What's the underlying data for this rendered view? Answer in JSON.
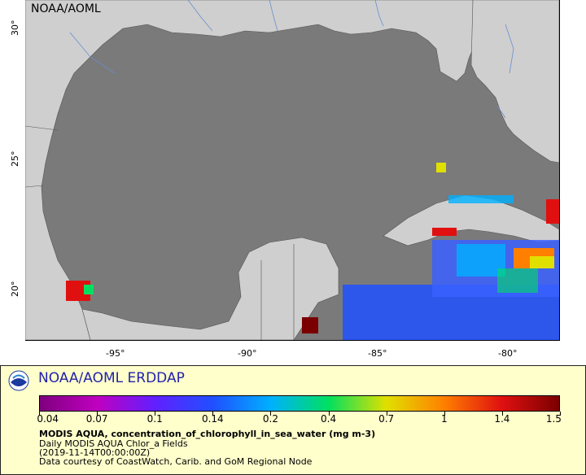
{
  "map": {
    "watermark": "NOAA/AOML",
    "x_ticks": [
      "-95°",
      "-90°",
      "-85°",
      "-80°"
    ],
    "y_ticks": [
      "30°",
      "25°",
      "20°"
    ],
    "colors": {
      "ocean_nodata": "#7a7a7a",
      "land": "#cfcfcf",
      "lakes_rivers": "#6a8ed0"
    }
  },
  "legend": {
    "brand": "NOAA/AOML ERDDAP",
    "logo_icon": "noaa-logo-icon",
    "colorbar_labels": [
      "0.04",
      "0.07",
      "0.1",
      "0.14",
      "0.2",
      "0.4",
      "0.7",
      "1",
      "1.4",
      "1.5"
    ],
    "colorbar_colors": [
      "#7e007e",
      "#c000c0",
      "#6020ff",
      "#2050ff",
      "#00b0ff",
      "#00e060",
      "#e0e000",
      "#ff8000",
      "#e01010",
      "#7a0000"
    ],
    "variable_title": "MODIS AQUA, concentration_of_chlorophyll_in_sea_water (mg m-3)",
    "dataset": "Daily MODIS AQUA Chlor_a Fields",
    "time": "(2019-11-14T00:00:00Z)",
    "credit": "Data courtesy of CoastWatch, Carib. and GoM Regional Node"
  }
}
